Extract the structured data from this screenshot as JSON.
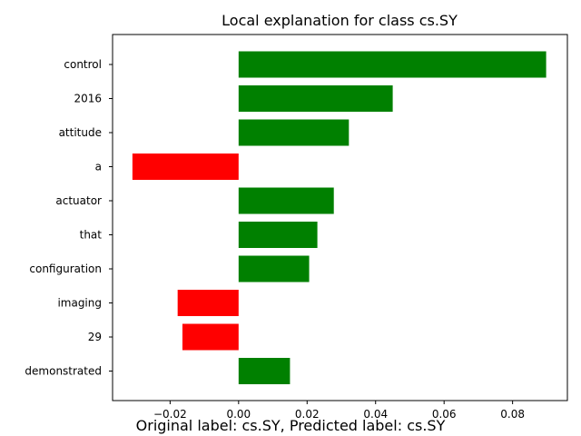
{
  "chart_data": {
    "type": "bar",
    "orientation": "horizontal",
    "title": "Local explanation for class cs.SY",
    "xlabel": "",
    "ylabel": "",
    "categories": [
      "control",
      "2016",
      "attitude",
      "a",
      "actuator",
      "that",
      "configuration",
      "imaging",
      "29",
      "demonstrated"
    ],
    "values": [
      0.0898,
      0.045,
      0.0322,
      -0.031,
      0.0278,
      0.023,
      0.0206,
      -0.0178,
      -0.0164,
      0.015
    ],
    "xlim": [
      -0.0368,
      0.096
    ],
    "xticks": [
      -0.02,
      0.0,
      0.02,
      0.04,
      0.06,
      0.08
    ],
    "xtick_labels": [
      "−0.02",
      "0.00",
      "0.02",
      "0.04",
      "0.06",
      "0.08"
    ],
    "positive_color": "#008000",
    "negative_color": "#ff0000",
    "grid": false,
    "legend": "none"
  },
  "footer_text": "Original label: cs.SY, Predicted label: cs.SY"
}
